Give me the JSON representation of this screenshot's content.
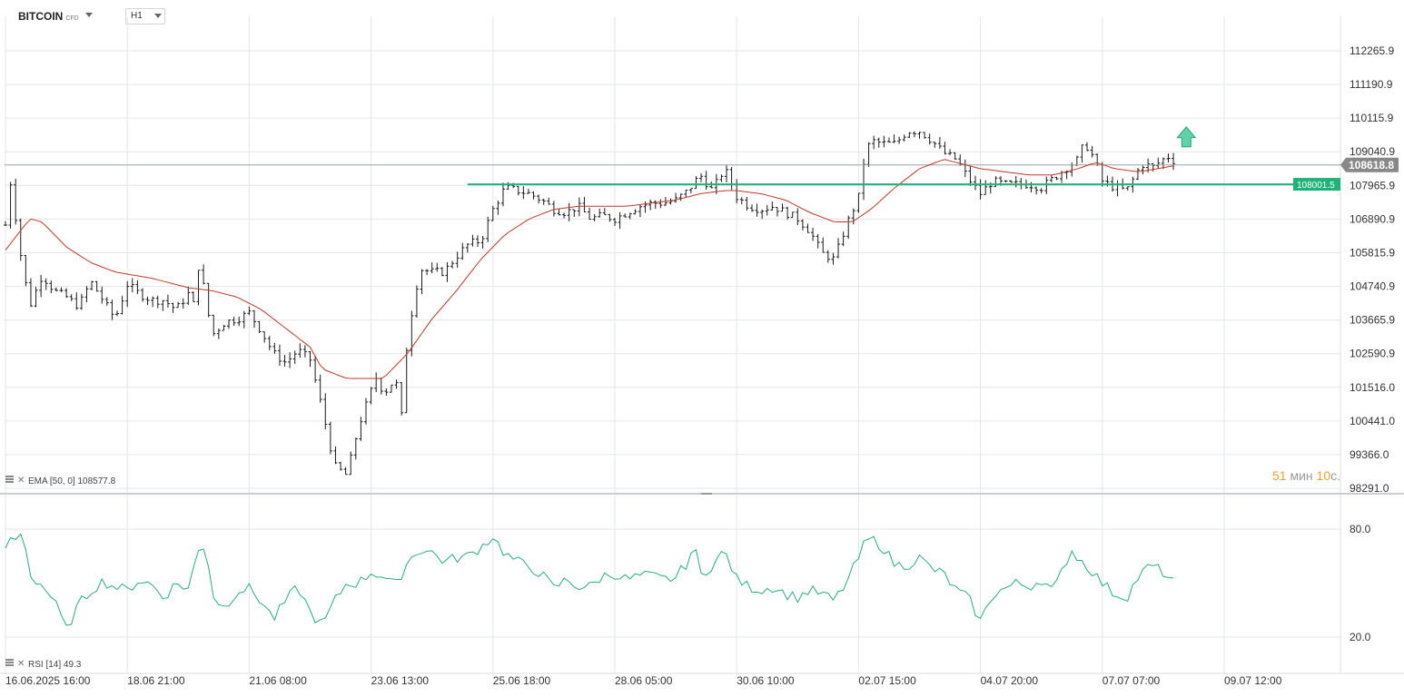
{
  "header": {
    "symbol": "BITCOIN",
    "symbol_suffix": "CFD",
    "timeframe": "H1"
  },
  "timer": {
    "minutes": "51",
    "min_unit": "мин",
    "seconds": "10",
    "sec_unit": "с."
  },
  "colors": {
    "candle": "#1a1a1a",
    "ema": "#c0392b",
    "rsi": "#27ae78",
    "level": "#1fb37a",
    "price_label_bg": "#888888",
    "grid": "#e3e6ea",
    "arrow": "#5fd3a8"
  },
  "chart_data": [
    {
      "type": "ohlc",
      "title": "BITCOIN",
      "timeframe": "H1",
      "x_tick_labels": [
        "16.06.2025  16:00",
        "18.06  21:00",
        "21.06  08:00",
        "23.06  13:00",
        "25.06  18:00",
        "28.06  05:00",
        "30.06  10:00",
        "02.07  15:00",
        "04.07  20:00",
        "07.07  07:00",
        "09.07  12:00"
      ],
      "y_tick_labels": [
        "112265.9",
        "111190.9",
        "110115.9",
        "109040.9",
        "107965.9",
        "106890.9",
        "105815.9",
        "104740.9",
        "103665.9",
        "102590.9",
        "101516.0",
        "100441.0",
        "99366.0",
        "98291.0"
      ],
      "ylim": [
        98291.0,
        112265.9
      ],
      "current_price": "108618.8",
      "horizontal_level": {
        "value": "108001.5",
        "start_label": "25.06  18:00"
      },
      "signal": "up-arrow",
      "close_path": [
        [
          0,
          106700
        ],
        [
          0.03,
          108400
        ],
        [
          0.06,
          107500
        ],
        [
          0.09,
          106800
        ],
        [
          0.13,
          105600
        ],
        [
          0.2,
          104100
        ],
        [
          0.3,
          105100
        ],
        [
          0.4,
          104600
        ],
        [
          0.5,
          104400
        ],
        [
          0.6,
          104100
        ],
        [
          0.7,
          104900
        ],
        [
          0.8,
          104300
        ],
        [
          0.9,
          103700
        ],
        [
          1.0,
          104800
        ],
        [
          1.1,
          104500
        ],
        [
          1.2,
          104300
        ],
        [
          1.3,
          104300
        ],
        [
          1.4,
          104000
        ],
        [
          1.5,
          104500
        ],
        [
          1.55,
          104100
        ],
        [
          1.6,
          106000
        ],
        [
          1.63,
          104500
        ],
        [
          1.7,
          103200
        ],
        [
          1.8,
          103600
        ],
        [
          1.9,
          103700
        ],
        [
          2.0,
          103900
        ],
        [
          2.1,
          103300
        ],
        [
          2.2,
          102600
        ],
        [
          2.3,
          102300
        ],
        [
          2.4,
          102700
        ],
        [
          2.5,
          102400
        ],
        [
          2.6,
          100800
        ],
        [
          2.7,
          99000
        ],
        [
          2.8,
          98700
        ],
        [
          2.9,
          100300
        ],
        [
          3.0,
          101400
        ],
        [
          3.05,
          101900
        ],
        [
          3.1,
          101300
        ],
        [
          3.2,
          101800
        ],
        [
          3.25,
          100600
        ],
        [
          3.3,
          103200
        ],
        [
          3.4,
          105300
        ],
        [
          3.5,
          105200
        ],
        [
          3.6,
          105200
        ],
        [
          3.7,
          105700
        ],
        [
          3.8,
          106100
        ],
        [
          3.9,
          106200
        ],
        [
          4.0,
          107200
        ],
        [
          4.1,
          107900
        ],
        [
          4.2,
          107800
        ],
        [
          4.3,
          107700
        ],
        [
          4.4,
          107500
        ],
        [
          4.5,
          107200
        ],
        [
          4.6,
          107100
        ],
        [
          4.7,
          107300
        ],
        [
          4.8,
          106900
        ],
        [
          4.9,
          107000
        ],
        [
          5.0,
          106900
        ],
        [
          5.1,
          107100
        ],
        [
          5.2,
          107300
        ],
        [
          5.3,
          107400
        ],
        [
          5.4,
          107400
        ],
        [
          5.5,
          107500
        ],
        [
          5.6,
          107800
        ],
        [
          5.7,
          108300
        ],
        [
          5.8,
          107800
        ],
        [
          5.9,
          108500
        ],
        [
          5.95,
          108100
        ],
        [
          6.0,
          107600
        ],
        [
          6.1,
          107300
        ],
        [
          6.2,
          107200
        ],
        [
          6.3,
          107300
        ],
        [
          6.4,
          107100
        ],
        [
          6.5,
          106900
        ],
        [
          6.6,
          106500
        ],
        [
          6.7,
          105800
        ],
        [
          6.8,
          105600
        ],
        [
          6.9,
          106700
        ],
        [
          7.0,
          107600
        ],
        [
          7.05,
          108900
        ],
        [
          7.1,
          109400
        ],
        [
          7.2,
          109300
        ],
        [
          7.3,
          109300
        ],
        [
          7.4,
          109700
        ],
        [
          7.5,
          109700
        ],
        [
          7.6,
          109400
        ],
        [
          7.7,
          109000
        ],
        [
          7.8,
          108800
        ],
        [
          7.9,
          108200
        ],
        [
          8.0,
          107700
        ],
        [
          8.1,
          108100
        ],
        [
          8.2,
          108000
        ],
        [
          8.3,
          108000
        ],
        [
          8.4,
          108000
        ],
        [
          8.5,
          107900
        ],
        [
          8.6,
          108200
        ],
        [
          8.7,
          108500
        ],
        [
          8.8,
          108800
        ],
        [
          8.85,
          109300
        ],
        [
          8.9,
          109100
        ],
        [
          8.95,
          108600
        ],
        [
          9.0,
          108100
        ],
        [
          9.1,
          107900
        ],
        [
          9.2,
          107800
        ],
        [
          9.3,
          108500
        ],
        [
          9.35,
          108700
        ],
        [
          9.4,
          108500
        ],
        [
          9.5,
          108800
        ],
        [
          9.55,
          108900
        ],
        [
          9.6,
          108700
        ]
      ],
      "ema": {
        "label": "EMA",
        "params": "[50, 0]",
        "value": "108577.8",
        "path": [
          [
            0,
            105900
          ],
          [
            0.2,
            106900
          ],
          [
            0.3,
            106800
          ],
          [
            0.5,
            106000
          ],
          [
            0.7,
            105500
          ],
          [
            0.9,
            105200
          ],
          [
            1.2,
            105000
          ],
          [
            1.5,
            104700
          ],
          [
            1.7,
            104600
          ],
          [
            1.9,
            104400
          ],
          [
            2.1,
            104000
          ],
          [
            2.3,
            103400
          ],
          [
            2.5,
            102800
          ],
          [
            2.6,
            102100
          ],
          [
            2.8,
            101800
          ],
          [
            3.0,
            101800
          ],
          [
            3.1,
            101800
          ],
          [
            3.3,
            102600
          ],
          [
            3.5,
            103700
          ],
          [
            3.7,
            104600
          ],
          [
            3.9,
            105600
          ],
          [
            4.1,
            106400
          ],
          [
            4.3,
            106900
          ],
          [
            4.5,
            107200
          ],
          [
            4.7,
            107300
          ],
          [
            4.9,
            107300
          ],
          [
            5.1,
            107300
          ],
          [
            5.3,
            107400
          ],
          [
            5.5,
            107500
          ],
          [
            5.7,
            107700
          ],
          [
            5.9,
            107800
          ],
          [
            6.0,
            107800
          ],
          [
            6.2,
            107700
          ],
          [
            6.4,
            107500
          ],
          [
            6.6,
            107100
          ],
          [
            6.8,
            106800
          ],
          [
            6.95,
            106800
          ],
          [
            7.1,
            107200
          ],
          [
            7.3,
            107900
          ],
          [
            7.5,
            108500
          ],
          [
            7.7,
            108800
          ],
          [
            7.8,
            108700
          ],
          [
            7.9,
            108600
          ],
          [
            8.0,
            108500
          ],
          [
            8.2,
            108400
          ],
          [
            8.4,
            108300
          ],
          [
            8.6,
            108300
          ],
          [
            8.8,
            108500
          ],
          [
            8.95,
            108700
          ],
          [
            9.1,
            108500
          ],
          [
            9.3,
            108400
          ],
          [
            9.45,
            108500
          ],
          [
            9.6,
            108600
          ]
        ]
      }
    },
    {
      "type": "line",
      "title": "RSI",
      "params": "[14]",
      "value": "49.3",
      "y_tick_labels": [
        "80.0",
        "20.0"
      ],
      "ylim": [
        15,
        85
      ],
      "path": [
        [
          0,
          70
        ],
        [
          0.05,
          74
        ],
        [
          0.1,
          75
        ],
        [
          0.15,
          78
        ],
        [
          0.2,
          54
        ],
        [
          0.3,
          49
        ],
        [
          0.4,
          40
        ],
        [
          0.5,
          24
        ],
        [
          0.6,
          38
        ],
        [
          0.7,
          46
        ],
        [
          0.8,
          51
        ],
        [
          0.9,
          48
        ],
        [
          1.0,
          46
        ],
        [
          1.1,
          52
        ],
        [
          1.2,
          49
        ],
        [
          1.3,
          42
        ],
        [
          1.4,
          50
        ],
        [
          1.5,
          47
        ],
        [
          1.6,
          72
        ],
        [
          1.65,
          69
        ],
        [
          1.7,
          43
        ],
        [
          1.8,
          36
        ],
        [
          1.9,
          46
        ],
        [
          2.0,
          47
        ],
        [
          2.1,
          40
        ],
        [
          2.2,
          30
        ],
        [
          2.3,
          40
        ],
        [
          2.4,
          48
        ],
        [
          2.5,
          34
        ],
        [
          2.6,
          26
        ],
        [
          2.7,
          40
        ],
        [
          2.8,
          50
        ],
        [
          2.9,
          50
        ],
        [
          3.0,
          56
        ],
        [
          3.1,
          54
        ],
        [
          3.2,
          48
        ],
        [
          3.3,
          62
        ],
        [
          3.4,
          69
        ],
        [
          3.5,
          67
        ],
        [
          3.6,
          62
        ],
        [
          3.7,
          64
        ],
        [
          3.8,
          65
        ],
        [
          3.9,
          70
        ],
        [
          4.0,
          76
        ],
        [
          4.1,
          66
        ],
        [
          4.2,
          62
        ],
        [
          4.3,
          59
        ],
        [
          4.4,
          55
        ],
        [
          4.5,
          47
        ],
        [
          4.6,
          52
        ],
        [
          4.7,
          48
        ],
        [
          4.8,
          48
        ],
        [
          4.9,
          54
        ],
        [
          5.0,
          55
        ],
        [
          5.1,
          52
        ],
        [
          5.2,
          54
        ],
        [
          5.3,
          54
        ],
        [
          5.4,
          52
        ],
        [
          5.5,
          53
        ],
        [
          5.6,
          62
        ],
        [
          5.65,
          72
        ],
        [
          5.7,
          54
        ],
        [
          5.8,
          60
        ],
        [
          5.9,
          68
        ],
        [
          6.0,
          52
        ],
        [
          6.1,
          48
        ],
        [
          6.2,
          46
        ],
        [
          6.3,
          48
        ],
        [
          6.4,
          44
        ],
        [
          6.5,
          42
        ],
        [
          6.6,
          46
        ],
        [
          6.7,
          44
        ],
        [
          6.8,
          40
        ],
        [
          6.9,
          50
        ],
        [
          7.0,
          64
        ],
        [
          7.05,
          72
        ],
        [
          7.1,
          75
        ],
        [
          7.2,
          70
        ],
        [
          7.3,
          60
        ],
        [
          7.4,
          60
        ],
        [
          7.5,
          64
        ],
        [
          7.6,
          58
        ],
        [
          7.7,
          55
        ],
        [
          7.8,
          46
        ],
        [
          7.9,
          42
        ],
        [
          8.0,
          29
        ],
        [
          8.05,
          36
        ],
        [
          8.1,
          44
        ],
        [
          8.2,
          47
        ],
        [
          8.3,
          50
        ],
        [
          8.4,
          48
        ],
        [
          8.5,
          52
        ],
        [
          8.6,
          45
        ],
        [
          8.7,
          62
        ],
        [
          8.75,
          68
        ],
        [
          8.8,
          64
        ],
        [
          8.9,
          58
        ],
        [
          9.0,
          50
        ],
        [
          9.1,
          44
        ],
        [
          9.2,
          42
        ],
        [
          9.3,
          54
        ],
        [
          9.4,
          60
        ],
        [
          9.5,
          56
        ],
        [
          9.6,
          49.3
        ]
      ]
    }
  ]
}
